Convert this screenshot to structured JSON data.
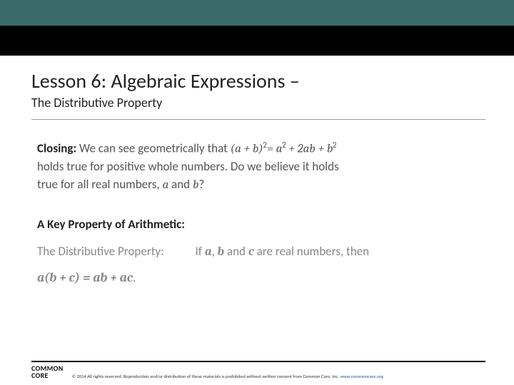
{
  "colors": {
    "top_bar": "#3a6a6a",
    "black_strip": "#000000",
    "text_primary": "#222222",
    "text_body": "#555555",
    "text_muted": "#888888",
    "link": "#1a5aa8",
    "rule": "#999999"
  },
  "title": {
    "main": "Lesson 6: Algebraic Expressions –",
    "sub": "The Distributive Property"
  },
  "closing": {
    "label": "Closing:",
    "line1_a": "We can see geometrically that ",
    "line1_expr_lhs": "(a + b)",
    "line1_sup1": "2",
    "line1_eq": "= a",
    "line1_sup2": "2",
    "line1_plus1": " +  2ab +  b",
    "line1_sup3": "2",
    "line2": "holds true for positive whole numbers.  Do we believe it holds",
    "line3_a": "true for all real numbers, ",
    "line3_var1": "a",
    "line3_and": " and ",
    "line3_var2": "b",
    "line3_q": "?"
  },
  "keyprop": {
    "heading": "A Key Property of Arithmetic:",
    "dist_label": "The Distributive Property:",
    "if_text": "If ",
    "a": "a",
    "c1": ", ",
    "b": "b",
    "and": " and ",
    "c": "c",
    "tail": " are real numbers, then",
    "formula": "a(b + c) = ab + ac",
    "period": "."
  },
  "footer": {
    "logo_l1": "COMMON",
    "logo_l2": "CORE",
    "copyright": "© 2014  All rights reserved. Reproduction and/or distribution of these materials is prohibited without written consent from Common Core, Inc.  ",
    "link": "www.commoncore.org"
  }
}
